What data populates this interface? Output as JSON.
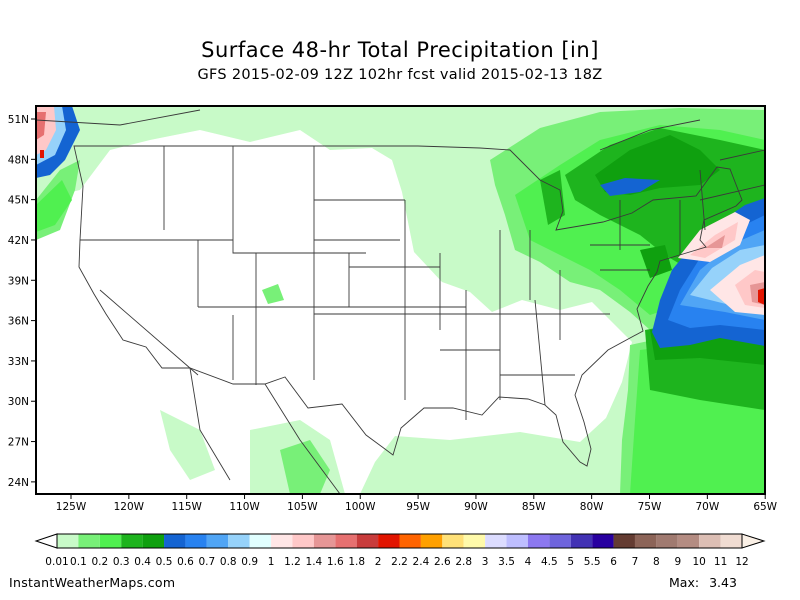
{
  "header": {
    "title": "Surface 48-hr Total Precipitation [in]",
    "subtitle": "GFS 2015-02-09 12Z 102hr fcst valid 2015-02-13 18Z"
  },
  "map": {
    "region": "Continental United States",
    "lat_labels": [
      "51N",
      "48N",
      "45N",
      "42N",
      "39N",
      "36N",
      "33N",
      "30N",
      "27N",
      "24N"
    ],
    "lon_labels": [
      "125W",
      "120W",
      "115W",
      "110W",
      "105W",
      "100W",
      "95W",
      "90W",
      "85W",
      "80W",
      "75W",
      "70W",
      "65W"
    ]
  },
  "colorbar": {
    "labels": [
      "0.01",
      "0.1",
      "0.2",
      "0.3",
      "0.4",
      "0.5",
      "0.6",
      "0.7",
      "0.8",
      "0.9",
      "1",
      "1.2",
      "1.4",
      "1.6",
      "1.8",
      "2",
      "2.2",
      "2.4",
      "2.6",
      "2.8",
      "3",
      "3.5",
      "4",
      "4.5",
      "5",
      "5.5",
      "6",
      "7",
      "8",
      "9",
      "10",
      "11",
      "12"
    ],
    "colors": [
      "#c8fac8",
      "#78f078",
      "#50f050",
      "#1eb41e",
      "#0fa00f",
      "#1464d2",
      "#2882f0",
      "#50a5f5",
      "#96d2fa",
      "#e1ffff",
      "#ffe6e6",
      "#ffc8c8",
      "#e69696",
      "#e67070",
      "#c83c3c",
      "#e11400",
      "#ff6400",
      "#ffa000",
      "#ffe178",
      "#fffaaa",
      "#dcdcff",
      "#bebeff",
      "#8c78f0",
      "#6e64dc",
      "#4232b4",
      "#2800a0",
      "#643c32",
      "#8c6458",
      "#a07a70",
      "#b48c82",
      "#dcbeb4",
      "#f0dcd2"
    ],
    "under_color": "#ffffff",
    "over_color": "#faf0e6"
  },
  "footer": {
    "site": "InstantWeatherMaps.com",
    "max_label": "Max:",
    "max_value": "3.43"
  }
}
